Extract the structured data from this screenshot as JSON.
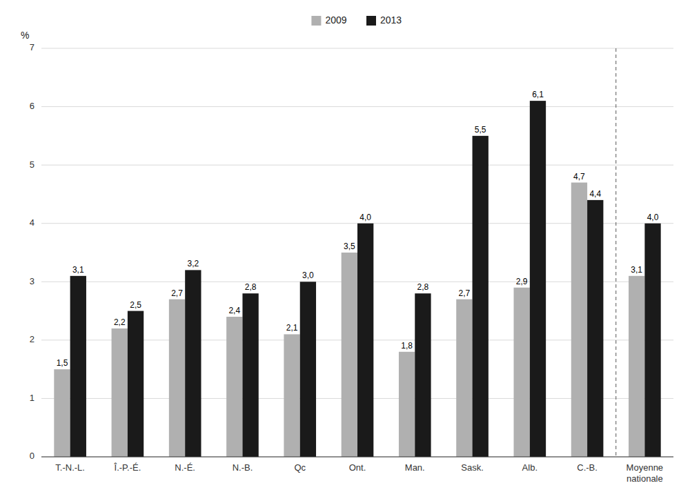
{
  "chart_data": {
    "type": "bar",
    "ylabel": "%",
    "categories": [
      "T.-N.-L.",
      "Î.-P.-É.",
      "N.-É.",
      "N.-B.",
      "Qc",
      "Ont.",
      "Man.",
      "Sask.",
      "Alb.",
      "C.-B.",
      "Moyenne\nnationale"
    ],
    "series": [
      {
        "name": "2009",
        "color": "#b0b0b0",
        "values": [
          1.5,
          2.2,
          2.7,
          2.4,
          2.1,
          3.5,
          1.8,
          2.7,
          2.9,
          4.7,
          3.1
        ],
        "value_labels": [
          "1,5",
          "2,2",
          "2,7",
          "2,4",
          "2,1",
          "3,5",
          "1,8",
          "2,7",
          "2,9",
          "4,7",
          "3,1"
        ]
      },
      {
        "name": "2013",
        "color": "#1a1a1a",
        "values": [
          3.1,
          2.5,
          3.2,
          2.8,
          3.0,
          4.0,
          2.8,
          5.5,
          6.1,
          4.4,
          4.0
        ],
        "value_labels": [
          "3,1",
          "2,5",
          "3,2",
          "2,8",
          "3,0",
          "4,0",
          "2,8",
          "5,5",
          "6,1",
          "4,4",
          "4,0"
        ]
      }
    ],
    "ylim": [
      0,
      7
    ],
    "yticks": [
      0,
      1,
      2,
      3,
      4,
      5,
      6,
      7
    ],
    "grid": true,
    "legend": "top",
    "data_labels": true
  }
}
